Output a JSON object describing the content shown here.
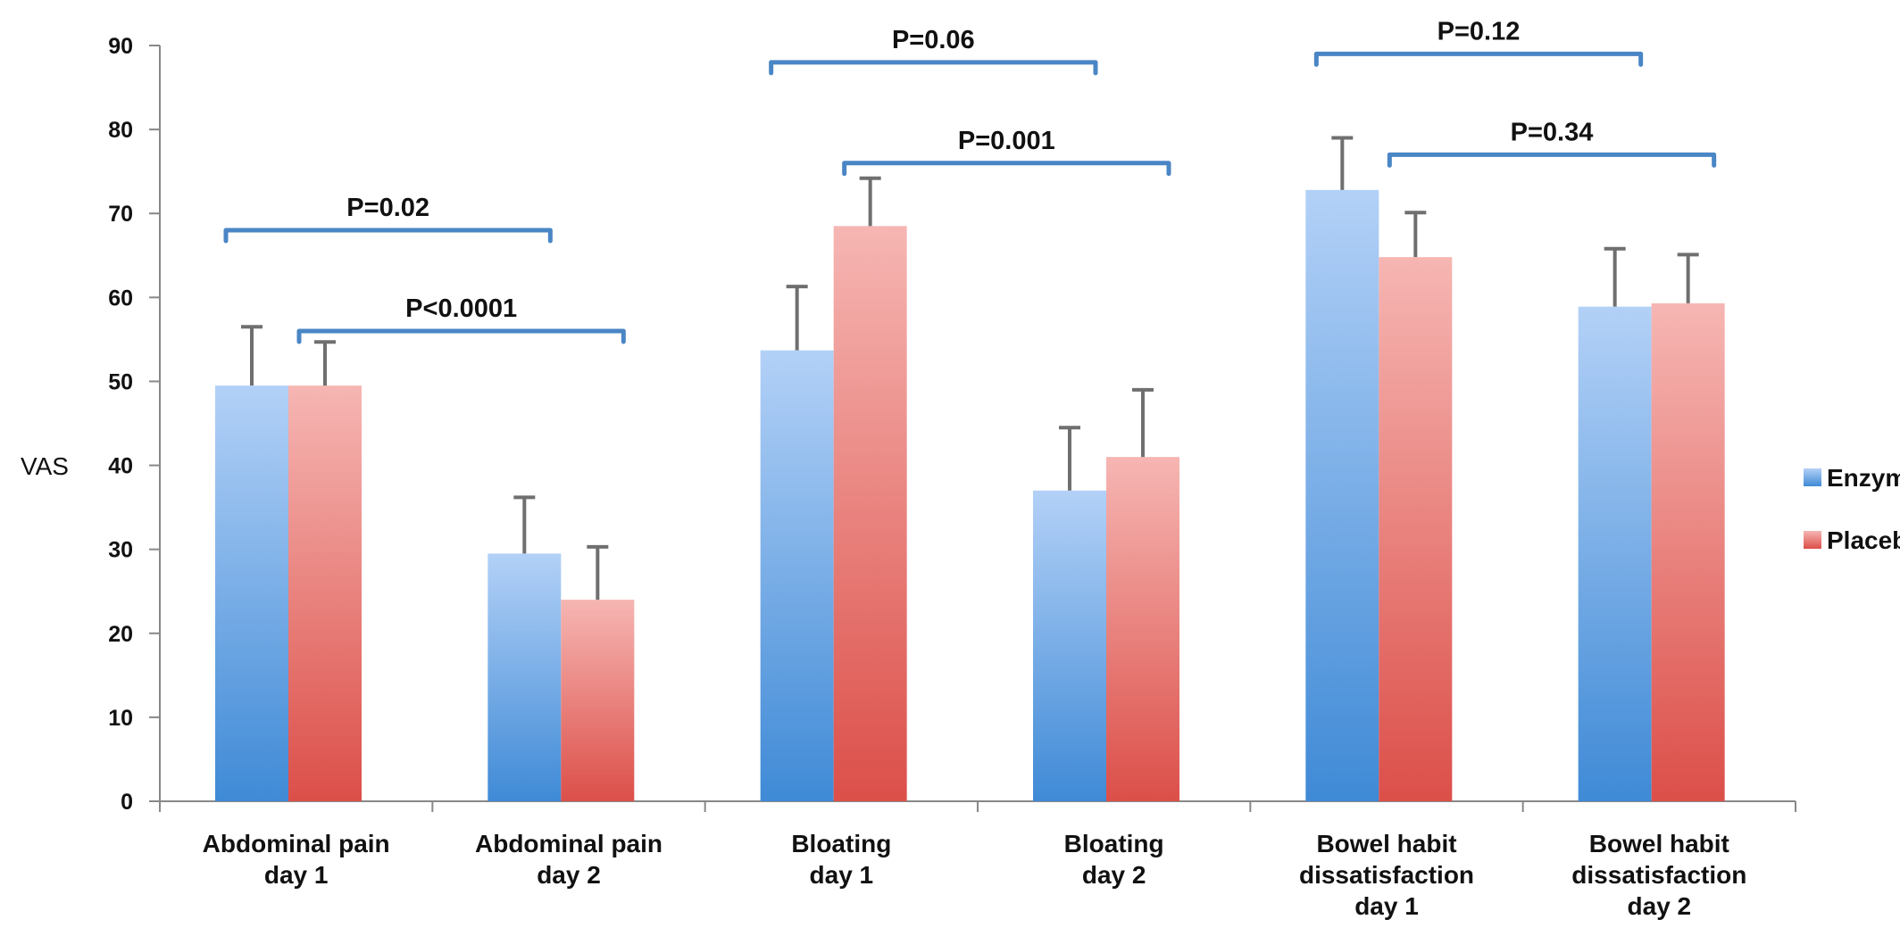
{
  "chart_data": {
    "type": "bar",
    "title": "",
    "xlabel": "",
    "ylabel": "VAS",
    "ylim": [
      0,
      90
    ],
    "yticks": [
      0,
      10,
      20,
      30,
      40,
      50,
      60,
      70,
      80,
      90
    ],
    "grid": false,
    "legend_position": "right",
    "categories": [
      [
        "Abdominal pain",
        "day 1"
      ],
      [
        "Abdominal pain",
        "day 2"
      ],
      [
        "Bloating",
        "day 1"
      ],
      [
        "Bloating",
        "day 2"
      ],
      [
        "Bowel habit",
        "dissatisfaction",
        "day 1"
      ],
      [
        "Bowel habit",
        "dissatisfaction",
        "day 2"
      ]
    ],
    "series": [
      {
        "name": "Enzyme",
        "color": "#5b9bd5",
        "values": [
          49.5,
          29.5,
          53.7,
          37.0,
          72.8,
          58.9
        ],
        "error": [
          7.0,
          6.7,
          7.6,
          7.5,
          6.2,
          6.9
        ]
      },
      {
        "name": "Placebo",
        "color": "#e06666",
        "values": [
          49.5,
          24.0,
          68.5,
          41.0,
          64.8,
          59.3
        ],
        "error": [
          5.2,
          6.3,
          5.7,
          8.0,
          5.3,
          5.8
        ]
      }
    ],
    "annotations": [
      {
        "text": "P=0.02",
        "from": 0,
        "to": 1,
        "level": 68
      },
      {
        "text": "P<0.0001",
        "from": 0,
        "to": 1,
        "level": 56
      },
      {
        "text": "P=0.06",
        "from": 2,
        "to": 3,
        "level": 88
      },
      {
        "text": "P=0.001",
        "from": 2,
        "to": 3,
        "level": 76
      },
      {
        "text": "P=0.12",
        "from": 4,
        "to": 5,
        "level": 89
      },
      {
        "text": "P=0.34",
        "from": 4,
        "to": 5,
        "level": 77
      }
    ]
  }
}
